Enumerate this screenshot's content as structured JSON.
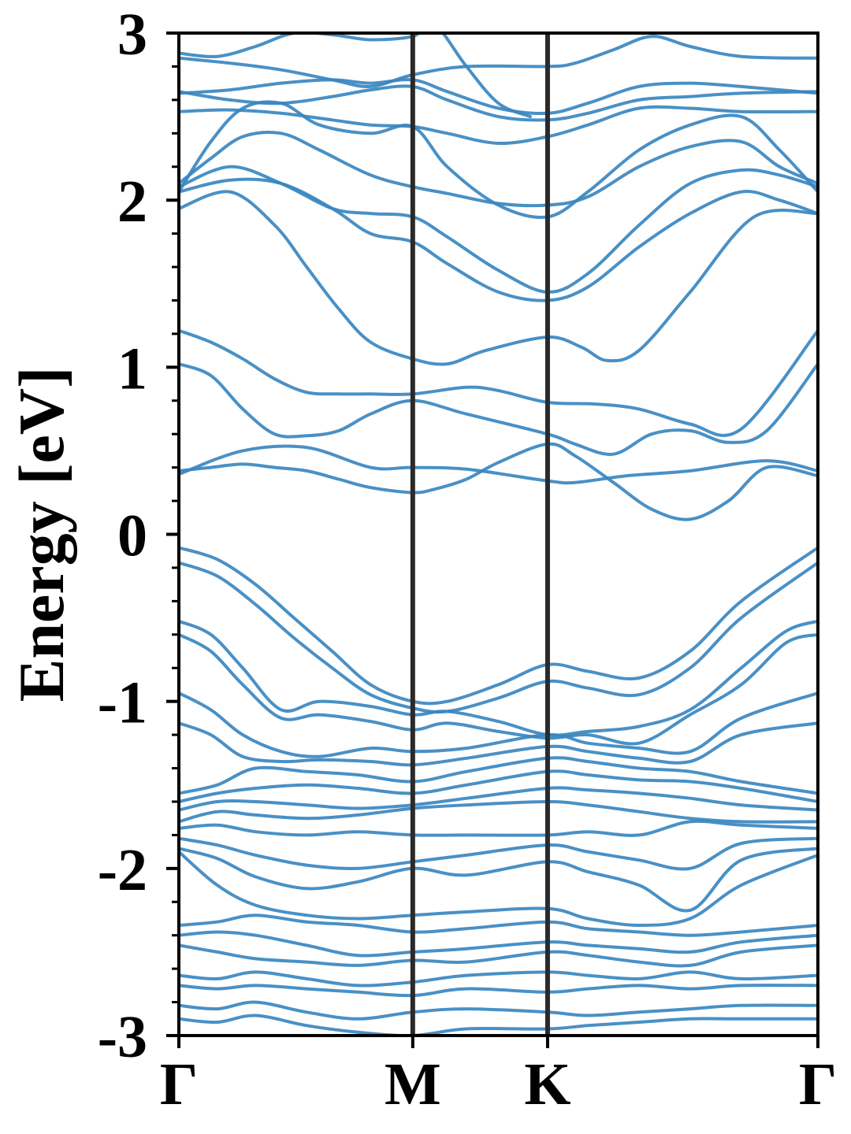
{
  "chart_data": {
    "type": "line",
    "title": "",
    "xlabel": "",
    "ylabel": "Energy [eV]",
    "ylim": [
      -3,
      3
    ],
    "xlim": [
      0,
      1
    ],
    "grid": false,
    "legend": "none",
    "x_ticks": [
      {
        "label": "Γ",
        "x": 0.0
      },
      {
        "label": "M",
        "x": 0.366
      },
      {
        "label": "K",
        "x": 0.577
      },
      {
        "label": "Γ",
        "x": 1.0
      }
    ],
    "y_ticks": [
      {
        "label": "-3",
        "y": -3
      },
      {
        "label": "-2",
        "y": -2
      },
      {
        "label": "-1",
        "y": -1
      },
      {
        "label": "0",
        "y": 0
      },
      {
        "label": "1",
        "y": 1
      },
      {
        "label": "2",
        "y": 2
      },
      {
        "label": "3",
        "y": 3
      }
    ],
    "y_minor_step": 0.2,
    "high_symmetry_lines": [
      0.366,
      0.577
    ],
    "colors": {
      "band": "#3a87c0",
      "divider": "#2a2a2a",
      "axis": "#000000"
    },
    "series": [
      {
        "x": [
          0,
          0.05,
          0.1,
          0.15,
          0.2,
          0.25,
          0.3,
          0.366,
          0.4,
          0.45,
          0.5,
          0.577,
          0.62,
          0.68,
          0.74,
          0.8,
          0.86,
          0.92,
          1.0
        ],
        "values": [
          0.38,
          0.4,
          0.42,
          0.4,
          0.38,
          0.33,
          0.28,
          0.25,
          0.27,
          0.33,
          0.43,
          0.54,
          0.47,
          0.31,
          0.15,
          0.09,
          0.2,
          0.4,
          0.35
        ]
      },
      {
        "x": [
          0,
          0.1,
          0.2,
          0.3,
          0.366,
          0.45,
          0.577,
          0.62,
          0.7,
          0.8,
          0.92,
          1.0
        ],
        "values": [
          0.36,
          0.5,
          0.52,
          0.4,
          0.4,
          0.39,
          0.32,
          0.31,
          0.35,
          0.38,
          0.44,
          0.38
        ]
      },
      {
        "x": [
          0,
          0.05,
          0.1,
          0.15,
          0.2,
          0.25,
          0.3,
          0.366,
          0.45,
          0.577,
          0.62,
          0.68,
          0.74,
          0.8,
          0.86,
          0.92,
          1.0
        ],
        "values": [
          1.02,
          0.95,
          0.75,
          0.6,
          0.59,
          0.62,
          0.72,
          0.8,
          0.72,
          0.6,
          0.54,
          0.48,
          0.6,
          0.62,
          0.55,
          0.62,
          1.02
        ]
      },
      {
        "x": [
          0,
          0.05,
          0.1,
          0.15,
          0.2,
          0.25,
          0.3,
          0.366,
          0.45,
          0.5,
          0.577,
          0.65,
          0.72,
          0.8,
          0.88,
          1.0
        ],
        "values": [
          1.22,
          1.15,
          1.05,
          0.93,
          0.85,
          0.84,
          0.84,
          0.84,
          0.88,
          0.86,
          0.79,
          0.78,
          0.75,
          0.66,
          0.63,
          1.22
        ]
      },
      {
        "x": [
          0,
          0.08,
          0.15,
          0.2,
          0.25,
          0.3,
          0.366,
          0.42,
          0.48,
          0.577,
          0.63,
          0.67,
          0.72,
          0.8,
          0.9,
          1.0
        ],
        "values": [
          1.95,
          2.05,
          1.85,
          1.6,
          1.35,
          1.15,
          1.05,
          1.02,
          1.1,
          1.18,
          1.12,
          1.04,
          1.1,
          1.45,
          1.9,
          1.92
        ]
      },
      {
        "x": [
          0,
          0.08,
          0.16,
          0.24,
          0.3,
          0.366,
          0.42,
          0.5,
          0.577,
          0.64,
          0.72,
          0.8,
          0.88,
          0.94,
          1.0
        ],
        "values": [
          2.05,
          2.12,
          2.1,
          1.95,
          1.8,
          1.75,
          1.62,
          1.45,
          1.4,
          1.48,
          1.72,
          1.92,
          2.05,
          2.0,
          1.92
        ]
      },
      {
        "x": [
          0,
          0.08,
          0.16,
          0.24,
          0.3,
          0.366,
          0.42,
          0.5,
          0.577,
          0.64,
          0.72,
          0.8,
          0.88,
          0.94,
          1.0
        ],
        "values": [
          2.08,
          2.2,
          2.1,
          1.95,
          1.92,
          1.9,
          1.78,
          1.58,
          1.45,
          1.56,
          1.85,
          2.1,
          2.18,
          2.15,
          2.08
        ]
      },
      {
        "x": [
          0,
          0.05,
          0.1,
          0.16,
          0.22,
          0.3,
          0.366,
          0.42,
          0.5,
          0.577,
          0.64,
          0.72,
          0.8,
          0.88,
          0.94,
          1.0
        ],
        "values": [
          2.1,
          2.25,
          2.38,
          2.4,
          2.3,
          2.15,
          2.08,
          2.04,
          1.98,
          1.97,
          2.02,
          2.2,
          2.32,
          2.35,
          2.2,
          2.1
        ]
      },
      {
        "x": [
          0,
          0.05,
          0.1,
          0.16,
          0.22,
          0.3,
          0.366,
          0.42,
          0.5,
          0.577,
          0.64,
          0.72,
          0.8,
          0.88,
          0.94,
          1.0
        ],
        "values": [
          2.05,
          2.35,
          2.55,
          2.58,
          2.45,
          2.4,
          2.44,
          2.2,
          1.97,
          1.9,
          2.05,
          2.3,
          2.45,
          2.5,
          2.3,
          2.05
        ]
      },
      {
        "x": [
          0,
          0.08,
          0.16,
          0.24,
          0.3,
          0.366,
          0.42,
          0.5,
          0.577,
          0.64,
          0.72,
          0.8,
          0.88,
          1.0
        ],
        "values": [
          2.53,
          2.54,
          2.52,
          2.48,
          2.45,
          2.44,
          2.4,
          2.34,
          2.38,
          2.45,
          2.55,
          2.55,
          2.53,
          2.53
        ]
      },
      {
        "x": [
          0,
          0.08,
          0.16,
          0.24,
          0.3,
          0.366,
          0.42,
          0.5,
          0.577,
          0.64,
          0.72,
          0.8,
          0.88,
          1.0
        ],
        "values": [
          2.65,
          2.6,
          2.58,
          2.62,
          2.66,
          2.68,
          2.6,
          2.5,
          2.48,
          2.52,
          2.6,
          2.62,
          2.64,
          2.65
        ]
      },
      {
        "x": [
          0,
          0.08,
          0.16,
          0.24,
          0.3,
          0.366,
          0.42,
          0.5,
          0.577,
          0.64,
          0.72,
          0.8,
          0.88,
          1.0
        ],
        "values": [
          2.64,
          2.66,
          2.7,
          2.72,
          2.7,
          2.72,
          2.65,
          2.55,
          2.52,
          2.58,
          2.68,
          2.7,
          2.68,
          2.64
        ]
      },
      {
        "x": [
          0,
          0.08,
          0.16,
          0.24,
          0.3,
          0.366,
          0.45,
          0.577,
          0.62,
          0.68,
          0.74,
          0.8,
          0.88,
          1.0
        ],
        "values": [
          2.85,
          2.82,
          2.78,
          2.72,
          2.68,
          2.75,
          2.8,
          2.8,
          2.82,
          2.9,
          2.98,
          2.92,
          2.86,
          2.85
        ]
      },
      {
        "x": [
          0,
          0.06,
          0.12,
          0.18,
          0.24,
          0.3,
          0.366,
          0.4,
          0.45,
          0.5,
          0.55
        ],
        "values": [
          2.88,
          2.86,
          2.92,
          3.0,
          2.99,
          2.96,
          2.98,
          3.05,
          2.8,
          2.58,
          2.5
        ]
      },
      {
        "x": [
          0,
          0.06,
          0.12,
          0.18,
          0.24,
          0.3,
          0.366,
          0.42,
          0.5,
          0.577,
          0.64,
          0.72,
          0.8,
          0.88,
          1.0
        ],
        "values": [
          -0.08,
          -0.15,
          -0.3,
          -0.5,
          -0.7,
          -0.9,
          -1.0,
          -1.0,
          -0.9,
          -0.78,
          -0.82,
          -0.86,
          -0.7,
          -0.4,
          -0.08
        ]
      },
      {
        "x": [
          0,
          0.06,
          0.12,
          0.18,
          0.24,
          0.3,
          0.366,
          0.42,
          0.5,
          0.577,
          0.64,
          0.72,
          0.8,
          0.88,
          1.0
        ],
        "values": [
          -0.17,
          -0.25,
          -0.42,
          -0.62,
          -0.8,
          -0.96,
          -1.04,
          -1.06,
          -0.98,
          -0.88,
          -0.92,
          -0.96,
          -0.8,
          -0.5,
          -0.17
        ]
      },
      {
        "x": [
          0,
          0.05,
          0.1,
          0.16,
          0.22,
          0.3,
          0.366,
          0.42,
          0.5,
          0.577,
          0.64,
          0.72,
          0.8,
          0.88,
          0.95,
          1.0
        ],
        "values": [
          -0.52,
          -0.6,
          -0.8,
          -1.05,
          -1.0,
          -1.03,
          -1.08,
          -1.06,
          -1.12,
          -1.2,
          -1.18,
          -1.15,
          -1.05,
          -0.8,
          -0.58,
          -0.52
        ]
      },
      {
        "x": [
          0,
          0.05,
          0.1,
          0.16,
          0.22,
          0.3,
          0.366,
          0.42,
          0.5,
          0.577,
          0.64,
          0.72,
          0.8,
          0.88,
          0.95,
          1.0
        ],
        "values": [
          -0.6,
          -0.7,
          -0.9,
          -1.1,
          -1.08,
          -1.12,
          -1.17,
          -1.13,
          -1.18,
          -1.22,
          -1.2,
          -1.25,
          -1.08,
          -0.9,
          -0.65,
          -0.6
        ]
      },
      {
        "x": [
          0,
          0.05,
          0.1,
          0.16,
          0.22,
          0.3,
          0.366,
          0.45,
          0.577,
          0.64,
          0.72,
          0.8,
          0.88,
          1.0
        ],
        "values": [
          -0.95,
          -1.05,
          -1.2,
          -1.3,
          -1.33,
          -1.28,
          -1.3,
          -1.28,
          -1.2,
          -1.25,
          -1.28,
          -1.3,
          -1.1,
          -0.95
        ]
      },
      {
        "x": [
          0,
          0.05,
          0.1,
          0.16,
          0.22,
          0.3,
          0.366,
          0.45,
          0.577,
          0.64,
          0.72,
          0.8,
          0.88,
          1.0
        ],
        "values": [
          -1.13,
          -1.2,
          -1.33,
          -1.36,
          -1.35,
          -1.36,
          -1.38,
          -1.34,
          -1.27,
          -1.3,
          -1.34,
          -1.36,
          -1.2,
          -1.13
        ]
      },
      {
        "x": [
          0,
          0.06,
          0.12,
          0.2,
          0.28,
          0.366,
          0.45,
          0.577,
          0.64,
          0.72,
          0.8,
          0.88,
          1.0
        ],
        "values": [
          -1.55,
          -1.5,
          -1.4,
          -1.42,
          -1.44,
          -1.48,
          -1.42,
          -1.34,
          -1.36,
          -1.4,
          -1.42,
          -1.48,
          -1.55
        ]
      },
      {
        "x": [
          0,
          0.06,
          0.12,
          0.2,
          0.28,
          0.366,
          0.45,
          0.577,
          0.64,
          0.72,
          0.8,
          0.88,
          1.0
        ],
        "values": [
          -1.6,
          -1.55,
          -1.52,
          -1.5,
          -1.52,
          -1.55,
          -1.5,
          -1.42,
          -1.44,
          -1.47,
          -1.48,
          -1.52,
          -1.6
        ]
      },
      {
        "x": [
          0,
          0.06,
          0.12,
          0.2,
          0.28,
          0.366,
          0.45,
          0.577,
          0.64,
          0.72,
          0.8,
          0.88,
          1.0
        ],
        "values": [
          -1.65,
          -1.6,
          -1.6,
          -1.62,
          -1.64,
          -1.62,
          -1.58,
          -1.52,
          -1.53,
          -1.55,
          -1.58,
          -1.62,
          -1.65
        ]
      },
      {
        "x": [
          0,
          0.06,
          0.12,
          0.2,
          0.28,
          0.366,
          0.45,
          0.577,
          0.64,
          0.72,
          0.8,
          0.88,
          1.0
        ],
        "values": [
          -1.72,
          -1.66,
          -1.68,
          -1.7,
          -1.68,
          -1.64,
          -1.62,
          -1.6,
          -1.62,
          -1.66,
          -1.7,
          -1.72,
          -1.72
        ]
      },
      {
        "x": [
          0,
          0.06,
          0.12,
          0.2,
          0.28,
          0.366,
          0.45,
          0.577,
          0.64,
          0.72,
          0.8,
          0.88,
          1.0
        ],
        "values": [
          -1.76,
          -1.74,
          -1.78,
          -1.8,
          -1.78,
          -1.8,
          -1.8,
          -1.8,
          -1.78,
          -1.8,
          -1.72,
          -1.74,
          -1.76
        ]
      },
      {
        "x": [
          0,
          0.06,
          0.12,
          0.2,
          0.28,
          0.366,
          0.45,
          0.577,
          0.64,
          0.72,
          0.8,
          0.88,
          1.0
        ],
        "values": [
          -1.82,
          -1.86,
          -1.92,
          -1.98,
          -2.0,
          -1.96,
          -1.92,
          -1.86,
          -1.9,
          -1.95,
          -2.0,
          -1.85,
          -1.82
        ]
      },
      {
        "x": [
          0,
          0.06,
          0.12,
          0.2,
          0.28,
          0.366,
          0.45,
          0.577,
          0.64,
          0.72,
          0.8,
          0.88,
          1.0
        ],
        "values": [
          -1.88,
          -1.94,
          -2.05,
          -2.12,
          -2.08,
          -2.0,
          -2.04,
          -1.96,
          -2.02,
          -2.1,
          -2.25,
          -1.95,
          -1.88
        ]
      },
      {
        "x": [
          0,
          0.06,
          0.12,
          0.2,
          0.28,
          0.366,
          0.45,
          0.577,
          0.64,
          0.72,
          0.8,
          0.88,
          1.0
        ],
        "values": [
          -1.9,
          -2.1,
          -2.22,
          -2.28,
          -2.3,
          -2.28,
          -2.26,
          -2.24,
          -2.3,
          -2.34,
          -2.3,
          -2.1,
          -1.92
        ]
      },
      {
        "x": [
          0,
          0.06,
          0.12,
          0.2,
          0.28,
          0.366,
          0.45,
          0.577,
          0.64,
          0.72,
          0.8,
          0.88,
          1.0
        ],
        "values": [
          -2.34,
          -2.32,
          -2.28,
          -2.32,
          -2.34,
          -2.38,
          -2.36,
          -2.32,
          -2.36,
          -2.38,
          -2.4,
          -2.38,
          -2.34
        ]
      },
      {
        "x": [
          0,
          0.06,
          0.12,
          0.2,
          0.28,
          0.366,
          0.45,
          0.577,
          0.64,
          0.72,
          0.8,
          0.88,
          1.0
        ],
        "values": [
          -2.4,
          -2.38,
          -2.4,
          -2.46,
          -2.52,
          -2.5,
          -2.48,
          -2.44,
          -2.46,
          -2.48,
          -2.5,
          -2.44,
          -2.4
        ]
      },
      {
        "x": [
          0,
          0.06,
          0.12,
          0.2,
          0.28,
          0.366,
          0.45,
          0.577,
          0.64,
          0.72,
          0.8,
          0.88,
          1.0
        ],
        "values": [
          -2.46,
          -2.5,
          -2.54,
          -2.56,
          -2.58,
          -2.55,
          -2.56,
          -2.5,
          -2.52,
          -2.56,
          -2.58,
          -2.5,
          -2.46
        ]
      },
      {
        "x": [
          0,
          0.06,
          0.12,
          0.2,
          0.28,
          0.366,
          0.45,
          0.577,
          0.64,
          0.72,
          0.8,
          0.88,
          1.0
        ],
        "values": [
          -2.64,
          -2.66,
          -2.62,
          -2.66,
          -2.7,
          -2.68,
          -2.64,
          -2.62,
          -2.64,
          -2.66,
          -2.62,
          -2.66,
          -2.64
        ]
      },
      {
        "x": [
          0,
          0.06,
          0.12,
          0.2,
          0.28,
          0.366,
          0.45,
          0.577,
          0.64,
          0.72,
          0.8,
          0.88,
          1.0
        ],
        "values": [
          -2.7,
          -2.72,
          -2.7,
          -2.72,
          -2.74,
          -2.76,
          -2.72,
          -2.74,
          -2.72,
          -2.7,
          -2.72,
          -2.7,
          -2.7
        ]
      },
      {
        "x": [
          0,
          0.06,
          0.12,
          0.2,
          0.28,
          0.366,
          0.45,
          0.577,
          0.64,
          0.72,
          0.8,
          0.88,
          1.0
        ],
        "values": [
          -2.82,
          -2.84,
          -2.8,
          -2.86,
          -2.9,
          -2.86,
          -2.84,
          -2.86,
          -2.88,
          -2.86,
          -2.84,
          -2.82,
          -2.82
        ]
      },
      {
        "x": [
          0,
          0.06,
          0.12,
          0.2,
          0.28,
          0.366,
          0.45,
          0.577,
          0.64,
          0.72,
          0.8,
          0.88,
          1.0
        ],
        "values": [
          -2.9,
          -2.92,
          -2.88,
          -2.94,
          -2.98,
          -3.0,
          -2.96,
          -2.96,
          -2.94,
          -2.92,
          -2.9,
          -2.9,
          -2.9
        ]
      }
    ]
  }
}
